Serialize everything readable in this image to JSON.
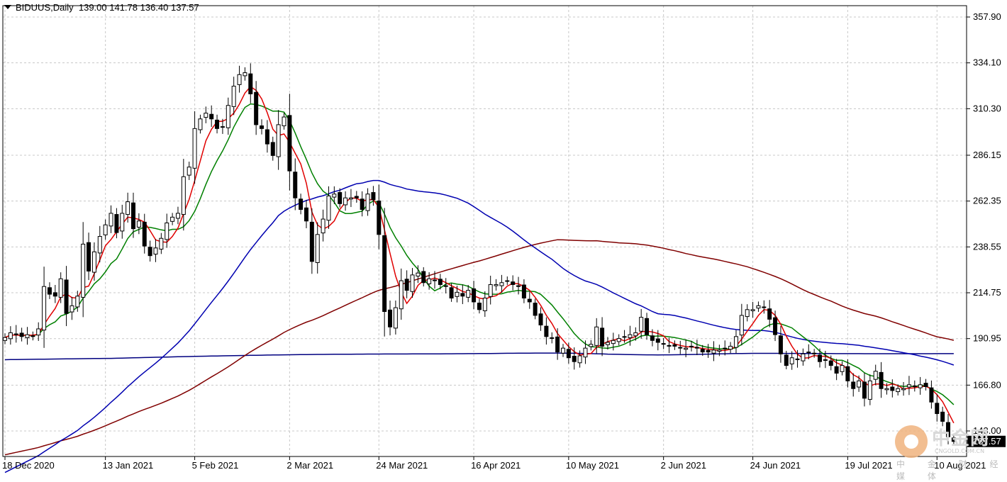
{
  "header": {
    "symbol": "BIDUUS,Daily",
    "ohlc": "139.00 141.78 136.40 137.57"
  },
  "watermark": {
    "main": "中金网",
    "url": "CNGOLD.COM.CN",
    "sub": "中 金 财 经 媒 体"
  },
  "chart_data": {
    "type": "candlestick",
    "title": "BIDUUS,Daily",
    "price_ticks": [
      357.9,
      334.1,
      310.3,
      286.15,
      262.35,
      238.55,
      214.75,
      190.95,
      166.8,
      143.0
    ],
    "date_ticks": [
      "18 Dec 2020",
      "13 Jan 2021",
      "5 Feb 2021",
      "2 Mar 2021",
      "24 Mar 2021",
      "16 Apr 2021",
      "10 May 2021",
      "2 Jun 2021",
      "24 Jun 2021",
      "19 Jul 2021",
      "10 Aug 2021"
    ],
    "last_price": "137.57",
    "ylim": [
      133.8,
      364.0
    ],
    "grid": true,
    "colors": {
      "bull": "#ffffff",
      "bear": "#000000",
      "ma_fast": "#e00000",
      "ma_mid": "#008000",
      "ma_blue": "#0000b0",
      "ma_brown": "#800000",
      "ma_long": "#000080",
      "grid": "#c8c8c8"
    },
    "closes": [
      191.5,
      194.0,
      193.0,
      192.0,
      193.0,
      192.0,
      196.0,
      218.0,
      214.0,
      213.0,
      222.0,
      204.0,
      208.0,
      213.0,
      240.0,
      226.0,
      236.0,
      244.0,
      250.0,
      256.0,
      246.0,
      256.0,
      262.0,
      248.0,
      252.0,
      239.0,
      234.0,
      238.0,
      243.0,
      251.0,
      254.0,
      256.0,
      275.0,
      280.0,
      300.0,
      305.0,
      308.0,
      305.0,
      300.0,
      301.0,
      312.0,
      322.0,
      328.0,
      329.0,
      318.0,
      302.0,
      300.0,
      292.0,
      286.0,
      302.0,
      306.0,
      278.0,
      264.0,
      258.0,
      252.0,
      231.0,
      245.0,
      253.0,
      265.0,
      266.0,
      261.0,
      264.0,
      264.0,
      264.0,
      258.0,
      266.0,
      263.0,
      245.0,
      205.0,
      197.0,
      207.0,
      221.0,
      216.0,
      224.0,
      225.0,
      220.0,
      222.0,
      221.0,
      219.0,
      218.0,
      212.0,
      215.0,
      213.0,
      216.0,
      210.0,
      206.0,
      212.0,
      219.0,
      219.0,
      220.0,
      221.0,
      219.0,
      218.0,
      212.0,
      210.0,
      203.0,
      198.0,
      192.0,
      191.0,
      184.0,
      186.0,
      181.0,
      179.0,
      182.0,
      186.0,
      188.0,
      197.0,
      187.0,
      189.0,
      190.0,
      191.0,
      192.0,
      193.0,
      194.0,
      202.0,
      193.0,
      190.0,
      189.0,
      188.0,
      187.0,
      187.0,
      186.0,
      186.0,
      187.0,
      186.0,
      184.0,
      184.0,
      185.0,
      185.0,
      186.0,
      187.0,
      192.0,
      203.0,
      206.0,
      206.0,
      208.0,
      207.0,
      201.0,
      193.0,
      183.0,
      177.0,
      181.0,
      180.0,
      183.0,
      184.0,
      183.0,
      179.0,
      180.0,
      177.0,
      173.0,
      177.0,
      169.0,
      165.0,
      169.0,
      160.0,
      169.0,
      174.0,
      165.0,
      165.0,
      164.0,
      165.0,
      165.0,
      167.0,
      166.0,
      167.0,
      166.0,
      158.0,
      152.0,
      148.0,
      140.0,
      137.57
    ]
  }
}
